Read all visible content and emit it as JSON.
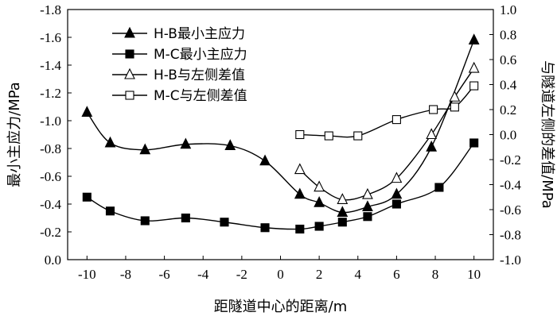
{
  "chart_data": {
    "type": "line",
    "xlabel": "距隧道中心的距离/m",
    "ylabel_left": "最小主应力/MPa",
    "ylabel_right": "与隧道左侧的差值/MPa",
    "xlim": [
      -11,
      11
    ],
    "ylim_left": [
      0.0,
      -1.8
    ],
    "ylim_right": [
      -1.0,
      1.0
    ],
    "x_ticks": [
      -10,
      -8,
      -6,
      -4,
      -2,
      0,
      2,
      4,
      6,
      8,
      10
    ],
    "x_tick_labels": [
      "-10",
      "-8",
      "-6",
      "-4",
      "-2",
      "0",
      "2",
      "4",
      "6",
      "8",
      "10"
    ],
    "y_left_ticks": [
      0.0,
      -0.2,
      -0.4,
      -0.6,
      -0.8,
      -1.0,
      -1.2,
      -1.4,
      -1.6,
      -1.8
    ],
    "y_left_tick_labels": [
      "0.0",
      "-0.2",
      "-0.4",
      "-0.6",
      "-0.8",
      "-1.0",
      "-1.2",
      "-1.4",
      "-1.6",
      "-1.8"
    ],
    "y_right_ticks": [
      -1.0,
      -0.8,
      -0.6,
      -0.4,
      -0.2,
      0.0,
      0.2,
      0.4,
      0.6,
      0.8,
      1.0
    ],
    "y_right_tick_labels": [
      "-1.0",
      "-0.8",
      "-0.6",
      "-0.4",
      "-0.2",
      "0.0",
      "0.2",
      "0.4",
      "0.6",
      "0.8",
      "1.0"
    ],
    "series": [
      {
        "name": "H-B最小主应力",
        "axis": "left",
        "marker": "triangle-filled",
        "x": [
          -10,
          -8.8,
          -7,
          -4.9,
          -2.6,
          -0.8,
          1.0,
          2.0,
          3.2,
          4.5,
          6.0,
          7.8,
          10.0
        ],
        "y": [
          -1.06,
          -0.84,
          -0.79,
          -0.83,
          -0.82,
          -0.71,
          -0.47,
          -0.41,
          -0.34,
          -0.38,
          -0.47,
          -0.81,
          -1.58
        ]
      },
      {
        "name": "M-C最小主应力",
        "axis": "left",
        "marker": "square-filled",
        "x": [
          -10,
          -8.8,
          -7,
          -4.9,
          -2.9,
          -0.8,
          1.0,
          2.0,
          3.2,
          4.5,
          6.0,
          8.2,
          10.0
        ],
        "y": [
          -0.45,
          -0.35,
          -0.28,
          -0.3,
          -0.27,
          -0.23,
          -0.22,
          -0.24,
          -0.27,
          -0.31,
          -0.4,
          -0.52,
          -0.84
        ]
      },
      {
        "name": "H-B与左侧差值",
        "axis": "right",
        "marker": "triangle-open",
        "x": [
          1.0,
          2.0,
          3.2,
          4.5,
          6.0,
          7.8,
          9.0,
          10.0
        ],
        "y": [
          -0.28,
          -0.42,
          -0.52,
          -0.48,
          -0.35,
          0.0,
          0.3,
          0.53
        ]
      },
      {
        "name": "M-C与左侧差值",
        "axis": "right",
        "marker": "square-open",
        "x": [
          1.0,
          2.5,
          4.0,
          6.0,
          7.9,
          9.0,
          10.0
        ],
        "y": [
          0.0,
          -0.01,
          -0.01,
          0.12,
          0.2,
          0.22,
          0.39
        ]
      }
    ]
  }
}
